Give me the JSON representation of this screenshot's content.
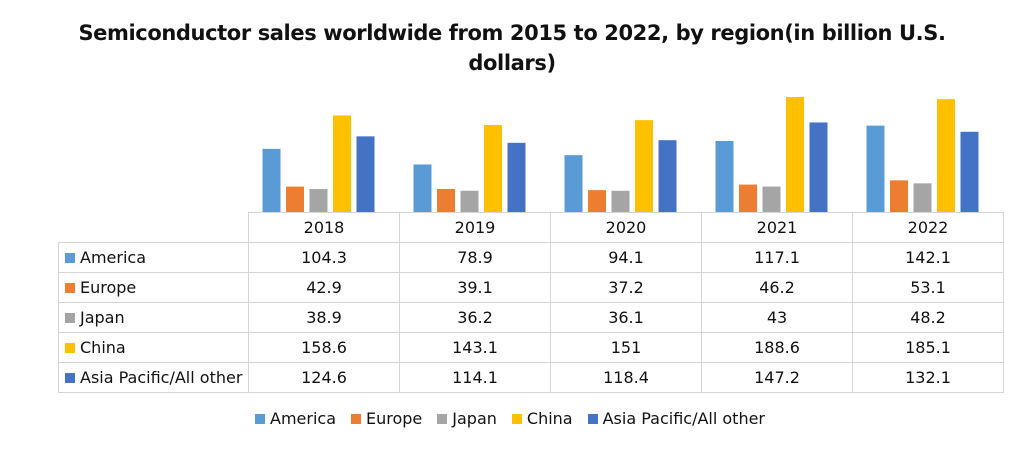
{
  "chart_data": {
    "type": "bar",
    "title": "Semiconductor sales worldwide from 2015 to 2022, by region(in billion U.S. dollars)",
    "title_lines": [
      "Semiconductor sales worldwide from 2015 to 2022, by region(in billion U.S.",
      "dollars)"
    ],
    "categories": [
      "2018",
      "2019",
      "2020",
      "2021",
      "2022"
    ],
    "series": [
      {
        "name": "America",
        "color": "#5b9bd5",
        "values": [
          104.3,
          78.9,
          94.1,
          117.1,
          142.1
        ],
        "labels": [
          "104.3",
          "78.9",
          "94.1",
          "117.1",
          "142.1"
        ]
      },
      {
        "name": "Europe",
        "color": "#ed7d31",
        "values": [
          42.9,
          39.1,
          37.2,
          46.2,
          53.1
        ],
        "labels": [
          "42.9",
          "39.1",
          "37.2",
          "46.2",
          "53.1"
        ]
      },
      {
        "name": "Japan",
        "color": "#a5a5a5",
        "values": [
          38.9,
          36.2,
          36.1,
          43,
          48.2
        ],
        "labels": [
          "38.9",
          "36.2",
          "36.1",
          "43",
          "48.2"
        ]
      },
      {
        "name": "China",
        "color": "#ffc000",
        "values": [
          158.6,
          143.1,
          151,
          188.6,
          185.1
        ],
        "labels": [
          "158.6",
          "143.1",
          "151",
          "188.6",
          "185.1"
        ]
      },
      {
        "name": "Asia Pacific/All other",
        "color": "#4472c4",
        "values": [
          124.6,
          114.1,
          118.4,
          147.2,
          132.1
        ],
        "labels": [
          "124.6",
          "114.1",
          "118.4",
          "147.2",
          "132.1"
        ]
      }
    ],
    "xlabel": "",
    "ylabel": "",
    "ylim": [
      0,
      190
    ],
    "grid": false,
    "legend": "bottom",
    "data_table": true
  }
}
